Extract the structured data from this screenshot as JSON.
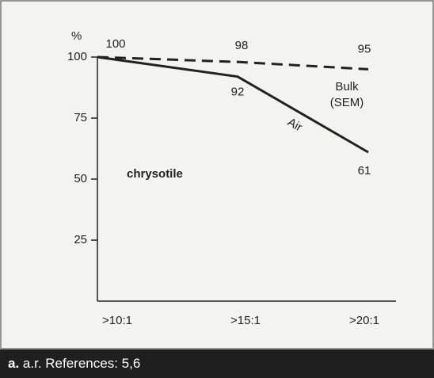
{
  "chart_data": {
    "type": "line",
    "y_label": "%",
    "categories": [
      ">10:1",
      ">15:1",
      ">20:1"
    ],
    "series": [
      {
        "name": "Air",
        "color": "#222222",
        "dash": false,
        "values": [
          100,
          92,
          61
        ]
      },
      {
        "name": "Bulk\n(SEM)",
        "color": "#222222",
        "dash": true,
        "values": [
          100,
          98,
          95
        ]
      }
    ],
    "ylim": [
      0,
      100
    ],
    "yticks": [
      25,
      50,
      75,
      100
    ],
    "annotation": "chrysotile"
  },
  "footer": {
    "label": "a.",
    "text": "a.r. References: 5,6"
  }
}
